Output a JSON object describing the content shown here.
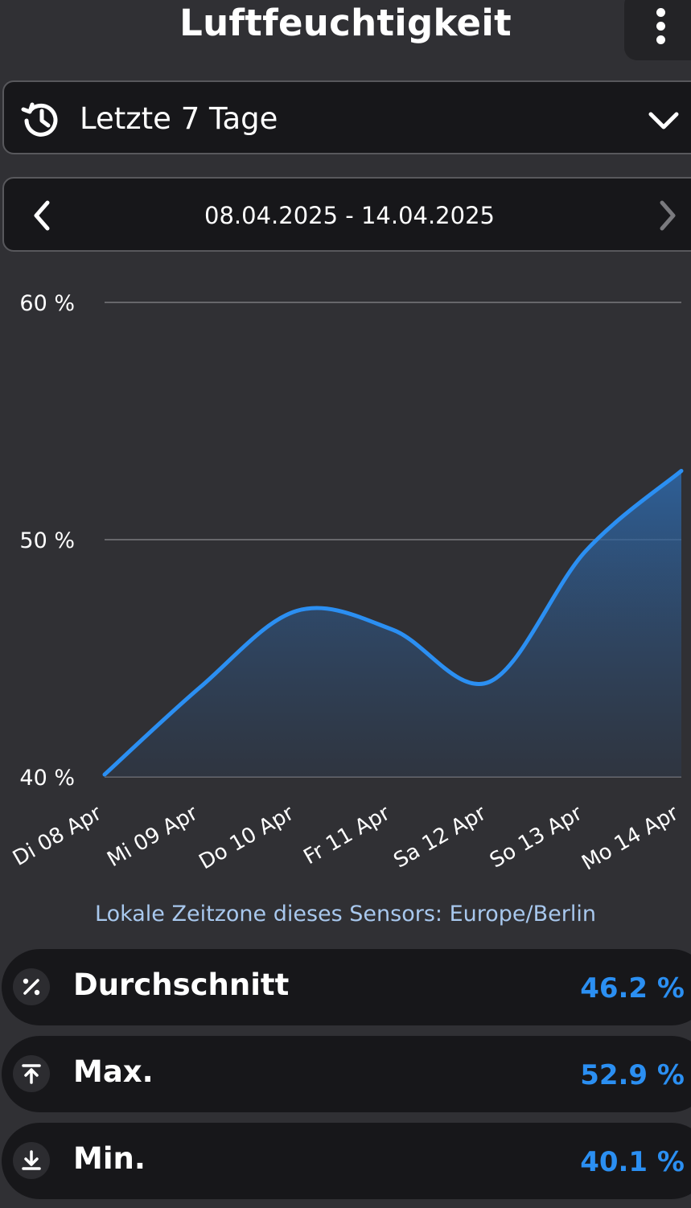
{
  "header": {
    "title": "Luftfeuchtigkeit",
    "menu_icon": "more-vertical-icon"
  },
  "range_select": {
    "icon": "history-icon",
    "label": "Letzte 7 Tage",
    "chevron_icon": "chevron-down-icon"
  },
  "date_nav": {
    "prev_icon": "chevron-left-icon",
    "range": "08.04.2025 - 14.04.2025",
    "next_icon": "chevron-right-icon"
  },
  "chart_data": {
    "type": "area",
    "categories": [
      "Di 08 Apr",
      "Mi 09 Apr",
      "Do 10 Apr",
      "Fr 11 Apr",
      "Sa 12 Apr",
      "So 13 Apr",
      "Mo 14 Apr"
    ],
    "series": [
      {
        "values": [
          40.1,
          43.8,
          47.0,
          46.2,
          44.0,
          49.5,
          52.9
        ]
      }
    ],
    "ylim": [
      40,
      60
    ],
    "yticks": [
      40,
      50,
      60
    ],
    "ytick_labels": [
      "40 %",
      "50 %",
      "60 %"
    ],
    "grid": true,
    "line_color": "#2b8ff2"
  },
  "timezone_note": "Lokale Zeitzone dieses Sensors: Europe/Berlin",
  "stats": [
    {
      "icon": "percent-icon",
      "label": "Durchschnitt",
      "value": "46.2 %"
    },
    {
      "icon": "arrow-up-to-line-icon",
      "label": "Max.",
      "value": "52.9 %"
    },
    {
      "icon": "arrow-down-to-line-icon",
      "label": "Min.",
      "value": "40.1 %"
    }
  ],
  "colors": {
    "accent": "#2b8ff2",
    "background": "#303034",
    "card": "#17171a",
    "note": "#a8c8ee"
  }
}
